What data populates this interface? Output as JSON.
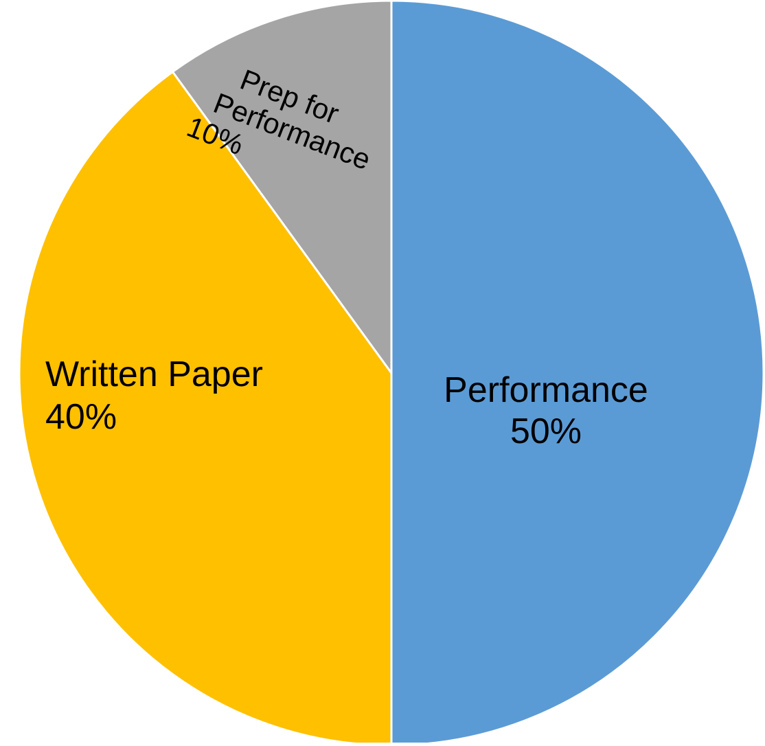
{
  "chart_data": {
    "type": "pie",
    "start_angle_deg": 0,
    "direction": "clockwise",
    "slices": [
      {
        "label_lines": [
          "Performance",
          "50%"
        ],
        "category": "Performance",
        "value": 50,
        "color": "#5B9BD5"
      },
      {
        "label_lines": [
          "Written Paper",
          "40%"
        ],
        "category": "Written Paper",
        "value": 40,
        "color": "#FFC000"
      },
      {
        "label_lines": [
          "Prep for",
          "Performance",
          "10%"
        ],
        "category": "Prep for Performance",
        "value": 10,
        "color": "#A5A5A5"
      }
    ],
    "legend": "none",
    "slice_separator_color": "#FFFFFF"
  }
}
